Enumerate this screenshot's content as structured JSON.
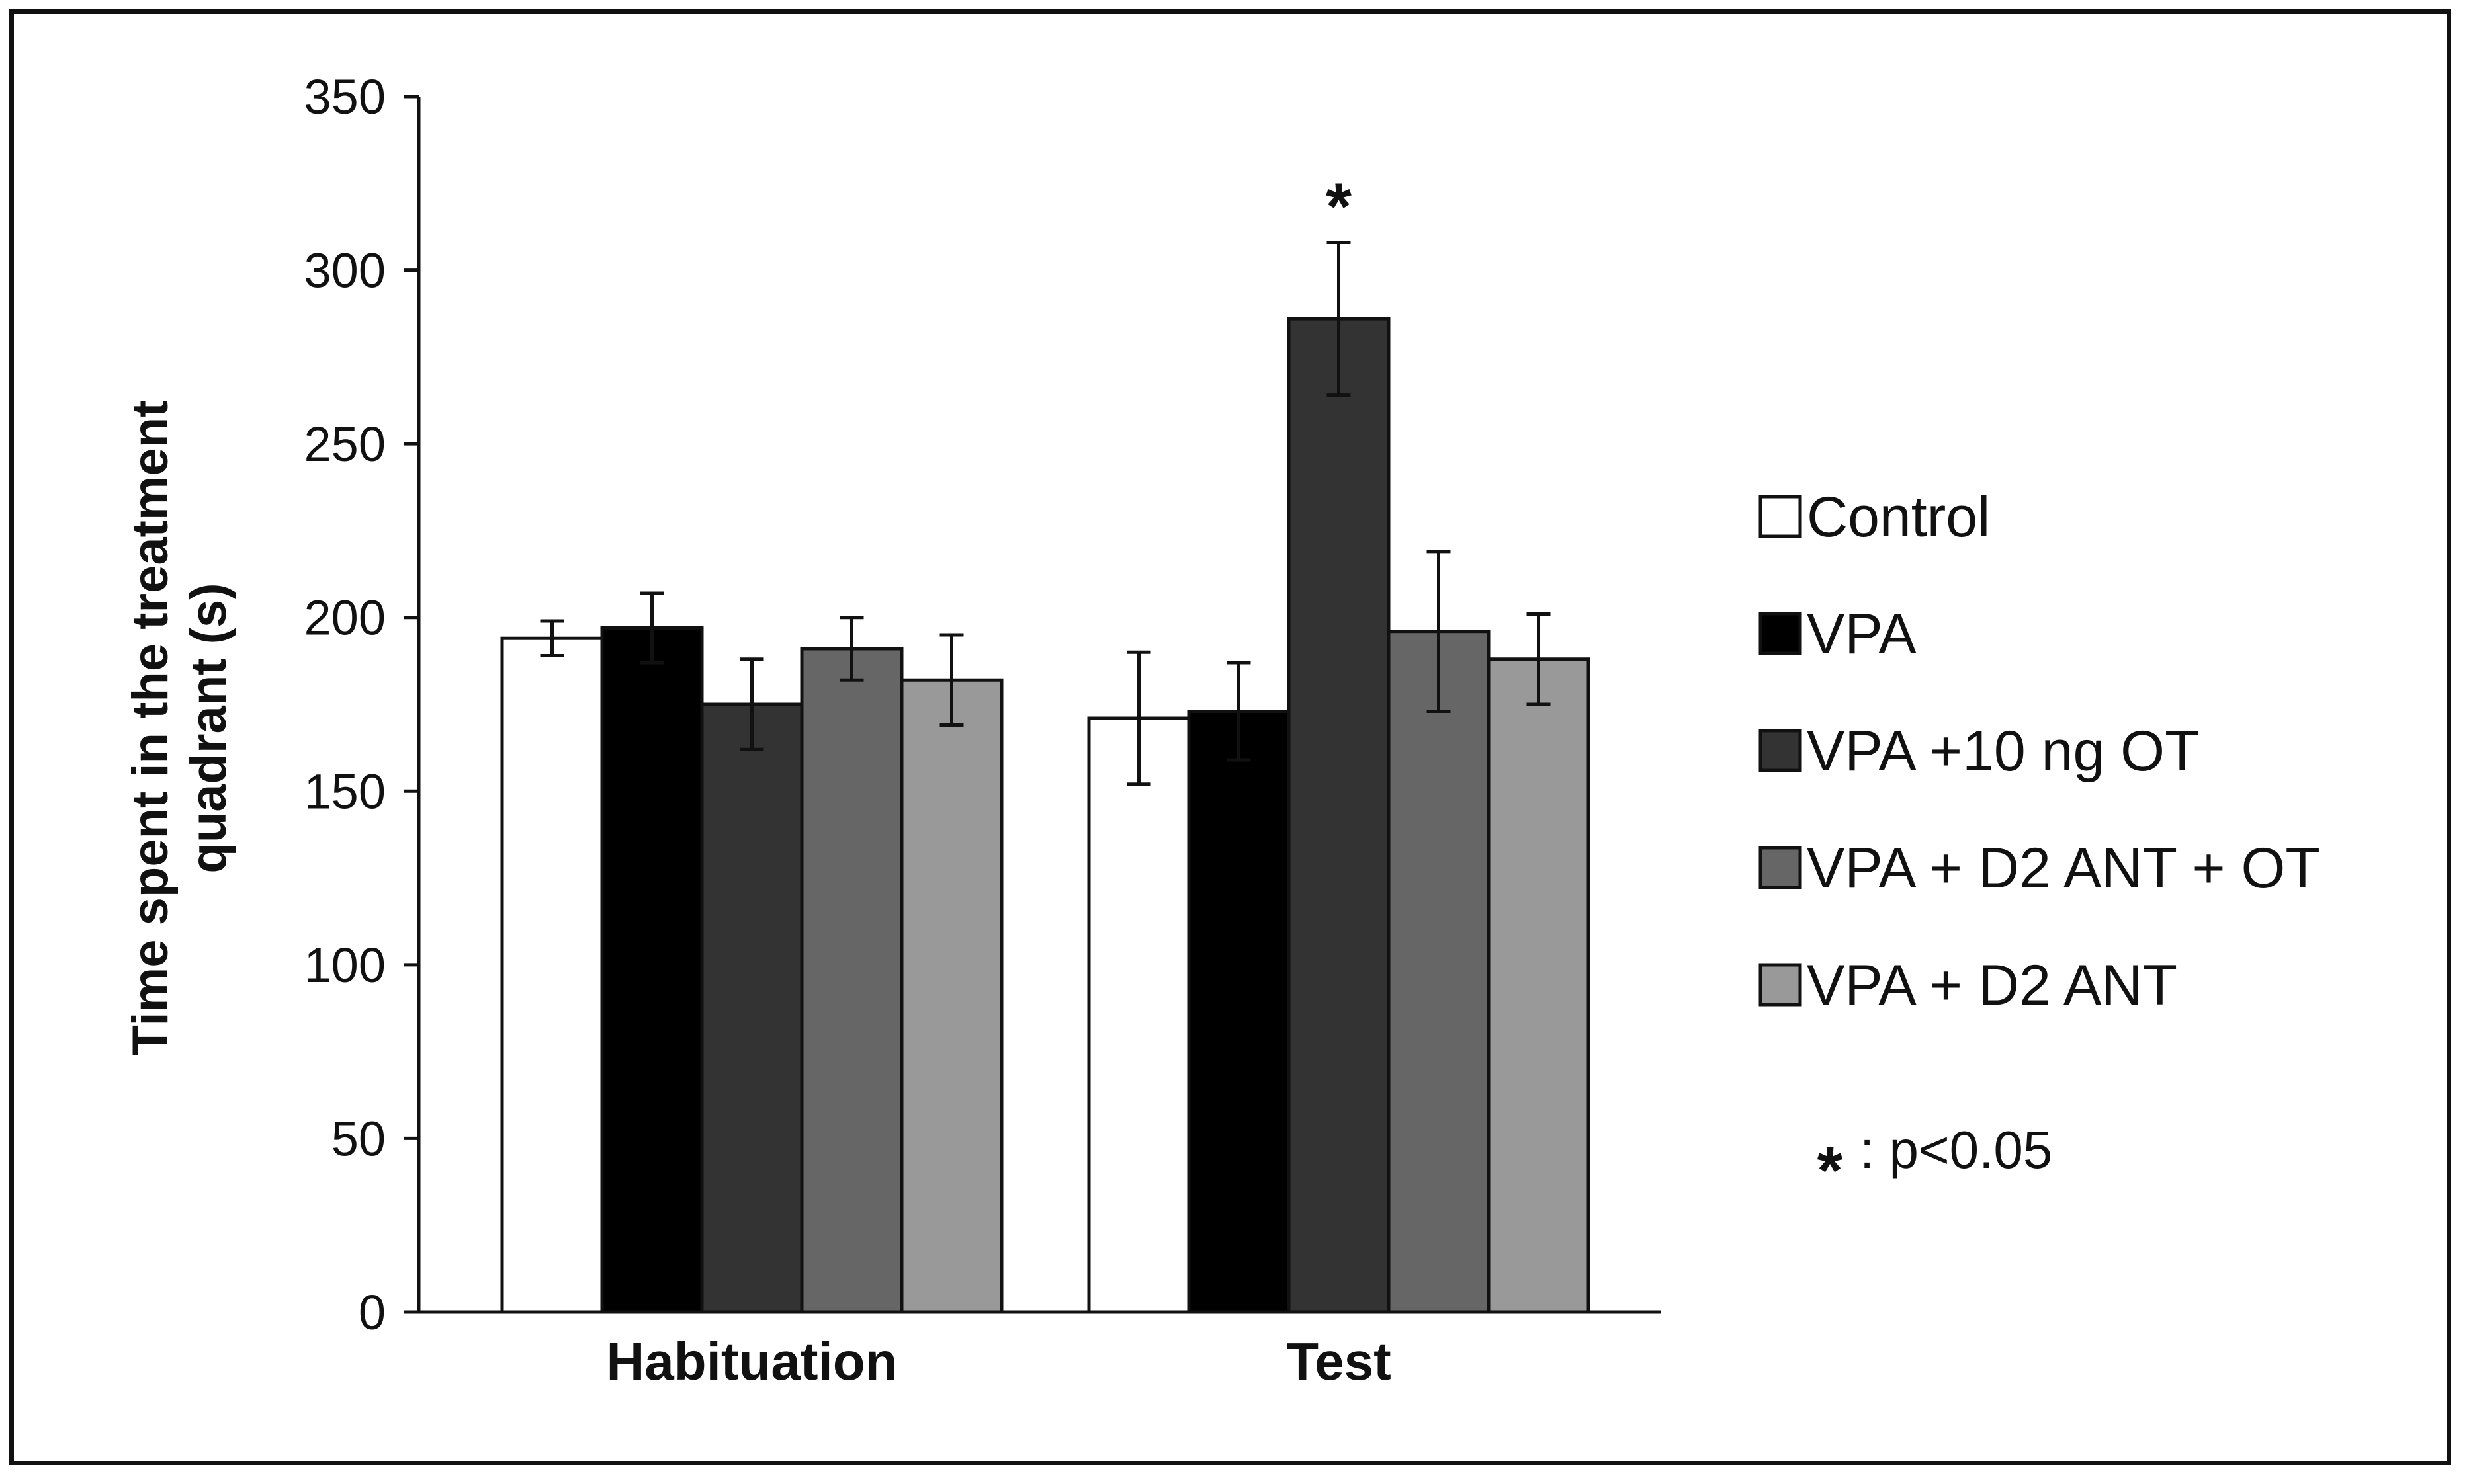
{
  "chart_data": {
    "type": "bar",
    "title": "",
    "xlabel": "",
    "ylabel": "Time spent in the treatment quadrant (s)",
    "ylabel_lines": [
      "Time spent in the treatment",
      "quadrant (s)"
    ],
    "ylim": [
      0,
      350
    ],
    "yticks": [
      0,
      50,
      100,
      150,
      200,
      250,
      300,
      350
    ],
    "categories": [
      "Habituation",
      "Test"
    ],
    "series": [
      {
        "name": "Control",
        "color": "#ffffff",
        "values": [
          194,
          171
        ],
        "errors": [
          5,
          19
        ]
      },
      {
        "name": "VPA",
        "color": "#000000",
        "values": [
          197,
          173
        ],
        "errors": [
          10,
          14
        ]
      },
      {
        "name": "VPA +10 ng OT",
        "color": "#333333",
        "values": [
          175,
          286
        ],
        "errors": [
          13,
          22
        ]
      },
      {
        "name": "VPA + D2 ANT + OT",
        "color": "#666666",
        "values": [
          191,
          196
        ],
        "errors": [
          9,
          23
        ]
      },
      {
        "name": "VPA + D2 ANT",
        "color": "#999999",
        "values": [
          182,
          188
        ],
        "errors": [
          13,
          13
        ]
      }
    ],
    "annotations": [
      {
        "text": "*",
        "category": "Test",
        "series": "VPA +10 ng OT"
      }
    ],
    "legend": "right",
    "significance_note": {
      "symbol": "*",
      "text": ": p<0.05"
    },
    "grid": false
  }
}
